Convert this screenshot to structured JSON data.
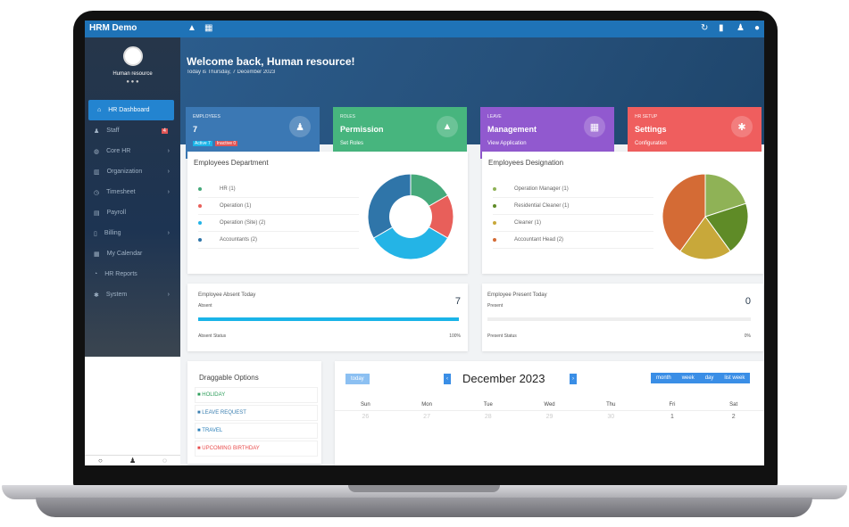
{
  "app": {
    "title": "HRM Demo",
    "top_icons_left": [
      "bell-icon",
      "grid-icon"
    ],
    "top_icons_right": [
      "refresh-icon",
      "lock-icon",
      "user-icon",
      "power-icon"
    ]
  },
  "user": {
    "name": "Human resource"
  },
  "sidebar": {
    "items": [
      {
        "label": "HR Dashboard",
        "icon": "home-icon",
        "active": true
      },
      {
        "label": "Staff",
        "icon": "user-icon",
        "badge": "4"
      },
      {
        "label": "Core HR",
        "icon": "globe-icon",
        "chevron": true
      },
      {
        "label": "Organization",
        "icon": "building-icon",
        "chevron": true
      },
      {
        "label": "Timesheet",
        "icon": "clock-icon",
        "chevron": true
      },
      {
        "label": "Payroll",
        "icon": "calculator-icon"
      },
      {
        "label": "Billing",
        "icon": "file-icon",
        "chevron": true
      },
      {
        "label": "My Calendar",
        "icon": "calendar-icon"
      },
      {
        "label": "HR Reports",
        "icon": "chart-icon"
      },
      {
        "label": "System",
        "icon": "gear-icon",
        "chevron": true
      }
    ]
  },
  "hero": {
    "title": "Welcome back, Human resource!",
    "subtitle": "Today is Thursday, 7 December 2023"
  },
  "cards": [
    {
      "top": "EMPLOYEES",
      "value": "7",
      "sub_a": "Active 7",
      "sub_b": "Inactive 0",
      "color": "#3b78b4",
      "icon": "user-icon"
    },
    {
      "top": "ROLES",
      "value": "Permission",
      "sub": "Set Roles",
      "color": "#47b57e",
      "icon": "lock-icon"
    },
    {
      "top": "LEAVE",
      "value": "Management",
      "sub": "View Application",
      "color": "#9159cf",
      "icon": "calendar-icon"
    },
    {
      "top": "HR SETUP",
      "value": "Settings",
      "sub": "Configuration",
      "color": "#ef5e5e",
      "icon": "gear-icon"
    }
  ],
  "chart_data": [
    {
      "type": "pie",
      "title": "Employees Department",
      "donut": true,
      "categories": [
        "HR",
        "Operation",
        "Operation (Site)",
        "Accountants"
      ],
      "values": [
        1,
        1,
        2,
        2
      ],
      "colors": [
        "#45a97a",
        "#e85f5a",
        "#24b4e6",
        "#2f75a9"
      ]
    },
    {
      "type": "pie",
      "title": "Employees Designation",
      "categories": [
        "Operation Manager",
        "Residential Cleaner",
        "Cleaner",
        "Accountant Head"
      ],
      "values": [
        1,
        1,
        1,
        2
      ],
      "colors": [
        "#8fb256",
        "#5f8b27",
        "#c8a83a",
        "#d46b35"
      ]
    }
  ],
  "legend_labels": [
    "HR (1)",
    "Operation (1)",
    "Operation (Site) (2)",
    "Accountants (2)"
  ],
  "legend_labels2": [
    "Operation Manager (1)",
    "Residential Cleaner (1)",
    "Cleaner (1)",
    "Accountant Head (2)"
  ],
  "absent": {
    "title": "Employee Absent Today",
    "sub": "Absent",
    "value": "7",
    "status": "Absent Status",
    "percent_label": "100%",
    "percent": 100
  },
  "present": {
    "title": "Employee Present Today",
    "sub": "Present",
    "value": "0",
    "status": "Present Status",
    "percent_label": "0%",
    "percent": 0
  },
  "draggable": {
    "title": "Draggable Options",
    "items": [
      {
        "label": "HOLIDAY",
        "color": "#2e9e5b"
      },
      {
        "label": "LEAVE REQUEST",
        "color": "#3b7fb0"
      },
      {
        "label": "TRAVEL",
        "color": "#2a7fb8"
      },
      {
        "label": "UPCOMING BIRTHDAY",
        "color": "#e84d4d"
      }
    ]
  },
  "calendar": {
    "today": "today",
    "month": "December 2023",
    "views": [
      "month",
      "week",
      "day",
      "list week"
    ],
    "dow": [
      "Sun",
      "Mon",
      "Tue",
      "Wed",
      "Thu",
      "Fri",
      "Sat"
    ],
    "first_row": [
      "26",
      "27",
      "28",
      "29",
      "30",
      "1",
      "2"
    ]
  }
}
